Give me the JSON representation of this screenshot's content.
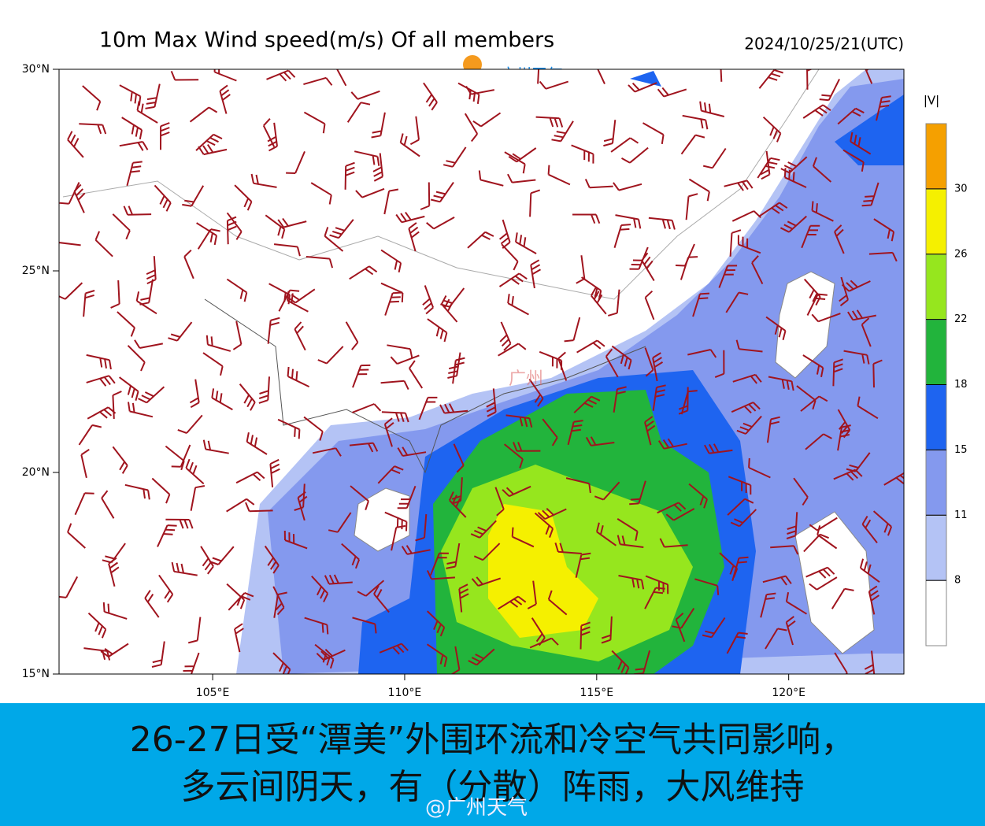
{
  "header": {
    "title": "10m Max Wind speed(m/s) Of all members",
    "timestamp": "2024/10/25/21(UTC)",
    "logo": "广州天气"
  },
  "map": {
    "lat_lim": [
      15,
      30
    ],
    "lon_lim": [
      101,
      123
    ],
    "lat_ticks": [
      {
        "value": 30,
        "label": "30°N"
      },
      {
        "value": 25,
        "label": "25°N"
      },
      {
        "value": 20,
        "label": "20°N"
      },
      {
        "value": 15,
        "label": "15°N"
      }
    ],
    "lon_ticks": [
      {
        "value": 105,
        "label": "105°E"
      },
      {
        "value": 110,
        "label": "110°E"
      },
      {
        "value": 115,
        "label": "115°E"
      },
      {
        "value": 120,
        "label": "120°E"
      }
    ],
    "city_label": "广州"
  },
  "colorbar": {
    "label": "|V|",
    "levels": [
      8,
      11,
      15,
      18,
      22,
      26,
      30
    ],
    "colors": [
      "#ffffff",
      "#b4c3f5",
      "#8499ee",
      "#1e64f0",
      "#22b43c",
      "#96e61e",
      "#f5f000",
      "#f5a000"
    ]
  },
  "caption": {
    "lines": [
      "26-27日受“潭美”外围环流和冷空气共同影响，",
      "多云间阴天，有（分散）阵雨，大风维持"
    ],
    "watermark": "@广州天气"
  }
}
